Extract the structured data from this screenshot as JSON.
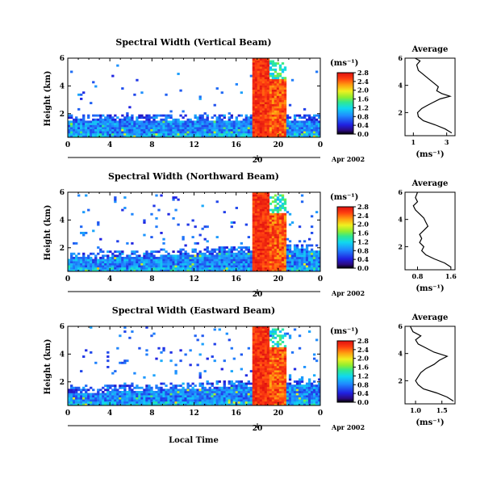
{
  "chart_data": [
    {
      "type": "heatmap",
      "title": "Spectral Width (Vertical Beam)",
      "ylabel": "Height (km)",
      "ylim": [
        0.3,
        6
      ],
      "x_ticks": [
        "0",
        "4",
        "8",
        "12",
        "16",
        "20",
        "0"
      ],
      "y_ticks": [
        "2",
        "4",
        "6"
      ],
      "date_marker": "20",
      "date_label": "Apr 2002",
      "colorbar_unit": "(ms⁻¹)",
      "colorbar_ticks": [
        "0.0",
        "0.4",
        "0.8",
        "1.2",
        "1.6",
        "2.0",
        "2.4",
        "2.8"
      ],
      "profile": {
        "title": "Average",
        "xlabel": "(ms⁻¹)",
        "x_ticks": [
          "1",
          "3"
        ],
        "xlim": [
          0.5,
          3.5
        ],
        "y_ticks": [
          "2",
          "4",
          "6"
        ],
        "points": [
          [
            3.3,
            0.5
          ],
          [
            2.9,
            0.8
          ],
          [
            2.3,
            1.1
          ],
          [
            1.6,
            1.4
          ],
          [
            1.3,
            1.7
          ],
          [
            1.25,
            2.0
          ],
          [
            1.5,
            2.3
          ],
          [
            1.8,
            2.5
          ],
          [
            2.1,
            2.7
          ],
          [
            2.6,
            3.0
          ],
          [
            3.2,
            3.2
          ],
          [
            2.7,
            3.4
          ],
          [
            2.4,
            3.6
          ],
          [
            2.5,
            3.9
          ],
          [
            2.2,
            4.2
          ],
          [
            1.9,
            4.5
          ],
          [
            1.6,
            4.8
          ],
          [
            1.3,
            5.1
          ],
          [
            1.2,
            5.5
          ],
          [
            1.4,
            5.8
          ],
          [
            1.1,
            6.0
          ]
        ]
      }
    },
    {
      "type": "heatmap",
      "title": "Spectral Width (Northward Beam)",
      "ylabel": "Height (km)",
      "ylim": [
        0.3,
        6
      ],
      "x_ticks": [
        "0",
        "4",
        "8",
        "12",
        "16",
        "20",
        "0"
      ],
      "y_ticks": [
        "2",
        "4",
        "6"
      ],
      "date_marker": "20",
      "date_label": "Apr 2002",
      "colorbar_unit": "(ms⁻¹)",
      "colorbar_ticks": [
        "0.0",
        "0.4",
        "0.8",
        "1.2",
        "1.6",
        "2.0",
        "2.4",
        "2.8"
      ],
      "profile": {
        "title": "Average",
        "xlabel": "(ms⁻¹)",
        "x_ticks": [
          "0.8",
          "1.6"
        ],
        "xlim": [
          0.5,
          1.7
        ],
        "y_ticks": [
          "2",
          "4",
          "6"
        ],
        "points": [
          [
            1.6,
            0.5
          ],
          [
            1.45,
            0.8
          ],
          [
            1.2,
            1.1
          ],
          [
            1.0,
            1.4
          ],
          [
            0.9,
            1.7
          ],
          [
            0.95,
            2.0
          ],
          [
            0.85,
            2.3
          ],
          [
            0.9,
            2.6
          ],
          [
            0.85,
            2.9
          ],
          [
            0.95,
            3.2
          ],
          [
            1.05,
            3.5
          ],
          [
            1.0,
            3.8
          ],
          [
            0.95,
            4.1
          ],
          [
            0.85,
            4.4
          ],
          [
            0.75,
            4.7
          ],
          [
            0.7,
            5.0
          ],
          [
            0.8,
            5.3
          ],
          [
            0.75,
            5.6
          ],
          [
            0.8,
            6.0
          ]
        ]
      }
    },
    {
      "type": "heatmap",
      "title": "Spectral Width (Eastward Beam)",
      "ylabel": "Height (km)",
      "ylim": [
        0.3,
        6
      ],
      "x_ticks": [
        "0",
        "4",
        "8",
        "12",
        "16",
        "20",
        "0"
      ],
      "y_ticks": [
        "2",
        "4",
        "6"
      ],
      "date_marker": "20",
      "date_label": "Apr 2002",
      "xlabel": "Local Time",
      "colorbar_unit": "(ms⁻¹)",
      "colorbar_ticks": [
        "0.0",
        "0.4",
        "0.8",
        "1.2",
        "1.6",
        "2.0",
        "2.4",
        "2.8"
      ],
      "profile": {
        "title": "Average",
        "xlabel": "(ms⁻¹)",
        "x_ticks": [
          "1.0",
          "1.5"
        ],
        "xlim": [
          0.8,
          1.75
        ],
        "y_ticks": [
          "2",
          "4",
          "6"
        ],
        "points": [
          [
            1.72,
            0.5
          ],
          [
            1.6,
            0.8
          ],
          [
            1.4,
            1.1
          ],
          [
            1.15,
            1.4
          ],
          [
            1.05,
            1.7
          ],
          [
            1.0,
            2.0
          ],
          [
            1.05,
            2.3
          ],
          [
            1.1,
            2.6
          ],
          [
            1.2,
            2.9
          ],
          [
            1.35,
            3.2
          ],
          [
            1.45,
            3.5
          ],
          [
            1.6,
            3.8
          ],
          [
            1.35,
            4.1
          ],
          [
            1.2,
            4.4
          ],
          [
            1.05,
            4.7
          ],
          [
            1.0,
            5.0
          ],
          [
            1.1,
            5.3
          ],
          [
            0.95,
            5.6
          ],
          [
            0.9,
            6.0
          ]
        ]
      }
    }
  ]
}
